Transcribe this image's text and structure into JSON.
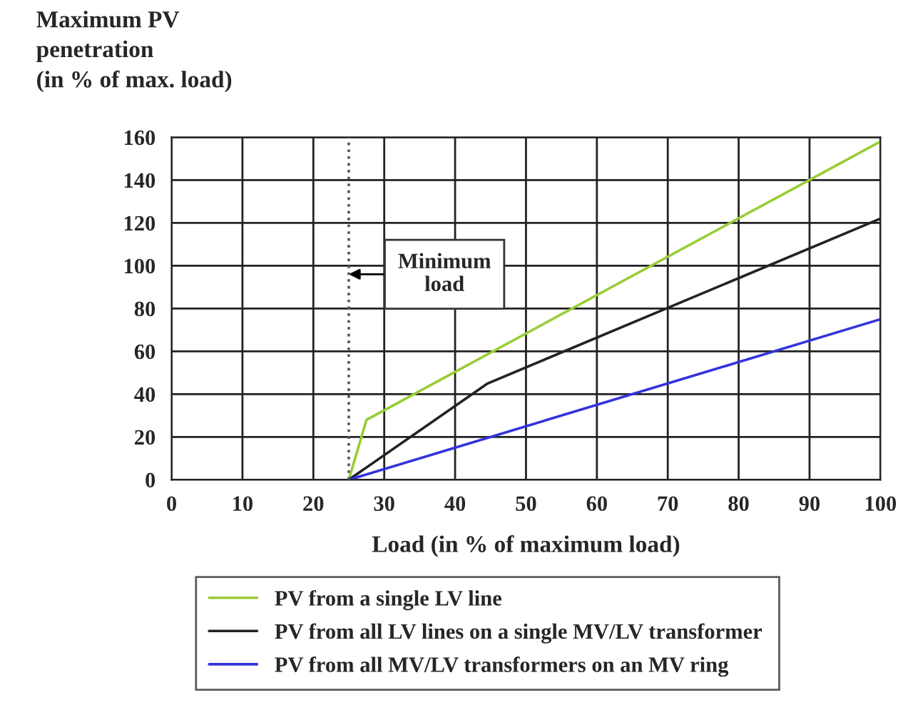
{
  "chart_data": {
    "type": "line",
    "xlabel": "Load (in % of maximum load)",
    "ylabel": "Maximum PV\npenetration\n(in % of max. load)",
    "xlim": [
      0,
      100
    ],
    "xticks": [
      0,
      10,
      20,
      30,
      40,
      50,
      60,
      70,
      80,
      90,
      100
    ],
    "ylim": [
      0,
      160
    ],
    "yticks": [
      0,
      20,
      40,
      60,
      80,
      100,
      120,
      140,
      160
    ],
    "grid": true,
    "legend": "bottom",
    "marker": "none",
    "line_style": "solid",
    "series": [
      {
        "name": "PV from a single LV line",
        "color": "#99cc33",
        "x": [
          25,
          27.5,
          100
        ],
        "values": [
          0,
          28,
          158
        ]
      },
      {
        "name": "PV from all LV lines on a single MV/LV transformer",
        "color": "#222222",
        "x": [
          25,
          44.6,
          100
        ],
        "values": [
          0,
          45,
          122
        ]
      },
      {
        "name": "PV from all MV/LV transformers on an MV ring",
        "color": "#3333dd",
        "x": [
          25,
          100
        ],
        "values": [
          0,
          75
        ]
      }
    ],
    "ref_lines": [
      {
        "axis": "x",
        "value": 25,
        "color": "#555555",
        "line_style": "dotted"
      }
    ],
    "annotations": [
      {
        "text": "Minimum\nload",
        "x": 25,
        "y": 96
      }
    ]
  }
}
